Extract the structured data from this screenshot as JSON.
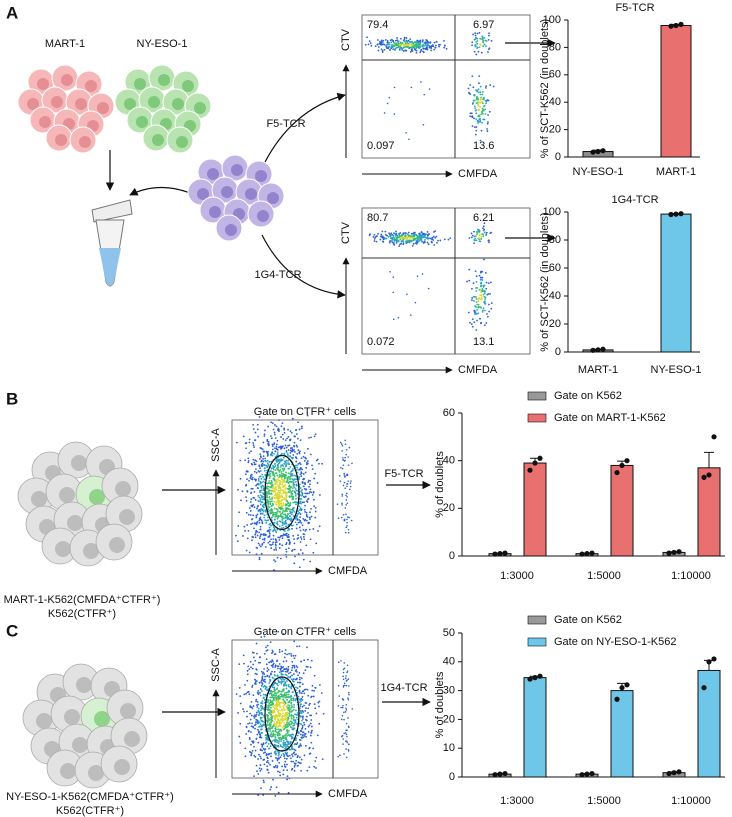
{
  "panel_labels": [
    "A",
    "B",
    "C"
  ],
  "panel_a": {
    "cell_labels": [
      "MART-1",
      "NY-ESO-1"
    ],
    "arrow_labels": [
      "F5-TCR",
      "1G4-TCR"
    ]
  },
  "panel_b": {
    "caption": [
      "MART-1-K562(CMFDA⁺CTFR⁺)",
      "K562(CTFR⁺)"
    ],
    "arrow_label": "F5-TCR"
  },
  "panel_c": {
    "caption": [
      "NY-ESO-1-K562(CMFDA⁺CTFR⁺)",
      "K562(CTFR⁺)"
    ],
    "arrow_label": "1G4-TCR"
  },
  "flow_plots": [
    {
      "y_label": "CTV",
      "x_label": "CMFDA",
      "quadrants": [
        79.4,
        6.97,
        0.097,
        13.6
      ]
    },
    {
      "y_label": "CTV",
      "x_label": "CMFDA",
      "quadrants": [
        80.7,
        6.21,
        0.072,
        13.1
      ]
    },
    {
      "title": "Gate on CTFR⁺ cells",
      "y_label": "SSC-A",
      "x_label": "CMFDA"
    },
    {
      "title": "Gate on CTFR⁺ cells",
      "y_label": "SSC-A",
      "x_label": "CMFDA"
    }
  ],
  "chart_data": [
    {
      "type": "bar",
      "title": "F5-TCR",
      "y_label": "% of SCT-K562 (in doublets)",
      "categories": [
        "NY-ESO-1",
        "MART-1"
      ],
      "values": [
        4,
        96
      ],
      "errors": [
        1,
        0.8
      ],
      "points": [
        [
          3.5,
          4,
          4.6
        ],
        [
          95.5,
          96,
          96.8
        ]
      ],
      "colors": [
        "#8c8c8c",
        "#e8706e"
      ],
      "ylim": [
        0,
        100
      ],
      "yticks": [
        0,
        20,
        40,
        60,
        80,
        100
      ]
    },
    {
      "type": "bar",
      "title": "1G4-TCR",
      "y_label": "% of SCT-K562 (in doublets)",
      "categories": [
        "MART-1",
        "NY-ESO-1"
      ],
      "values": [
        1.5,
        98.5
      ],
      "errors": [
        0.5,
        0.4
      ],
      "points": [
        [
          1.2,
          1.5,
          2
        ],
        [
          98.2,
          98.5,
          98.8
        ]
      ],
      "colors": [
        "#8c8c8c",
        "#6ec6e8"
      ],
      "ylim": [
        0,
        100
      ],
      "yticks": [
        0,
        20,
        40,
        60,
        80,
        100
      ]
    },
    {
      "type": "grouped_bar",
      "y_label": "% of doublets",
      "categories": [
        "1:3000",
        "1:5000",
        "1:10000"
      ],
      "series": [
        {
          "name": "Gate on K562",
          "color": "#999999",
          "values": [
            1,
            1,
            1.5
          ],
          "errors": [
            0.2,
            0.2,
            0.3
          ],
          "points": [
            [
              0.8,
              1,
              1.2
            ],
            [
              0.8,
              1,
              1.2
            ],
            [
              1.2,
              1.5,
              1.8
            ]
          ]
        },
        {
          "name": "Gate on MART-1-K562",
          "color": "#e8706e",
          "values": [
            39,
            38,
            37
          ],
          "errors": [
            2,
            1.8,
            6.5
          ],
          "points": [
            [
              36,
              39,
              41
            ],
            [
              35,
              38,
              40
            ],
            [
              33,
              34,
              50
            ]
          ]
        }
      ],
      "ylim": [
        0,
        60
      ],
      "yticks": [
        0,
        20,
        40,
        60
      ]
    },
    {
      "type": "grouped_bar",
      "y_label": "% of doublets",
      "categories": [
        "1:3000",
        "1:5000",
        "1:10000"
      ],
      "series": [
        {
          "name": "Gate on K562",
          "color": "#999999",
          "values": [
            1,
            1,
            1.5
          ],
          "errors": [
            0.2,
            0.2,
            0.3
          ],
          "points": [
            [
              0.8,
              1,
              1.2
            ],
            [
              0.8,
              1,
              1.2
            ],
            [
              1.2,
              1.5,
              1.8
            ]
          ]
        },
        {
          "name": "Gate on NY-ESO-1-K562",
          "color": "#6ec6e8",
          "values": [
            34.5,
            30,
            37
          ],
          "errors": [
            0.5,
            2.5,
            3.5
          ],
          "points": [
            [
              34,
              34.5,
              35
            ],
            [
              27,
              31,
              32
            ],
            [
              31,
              40,
              41
            ]
          ]
        }
      ],
      "ylim": [
        0,
        50
      ],
      "yticks": [
        0,
        10,
        20,
        30,
        40,
        50
      ]
    }
  ]
}
